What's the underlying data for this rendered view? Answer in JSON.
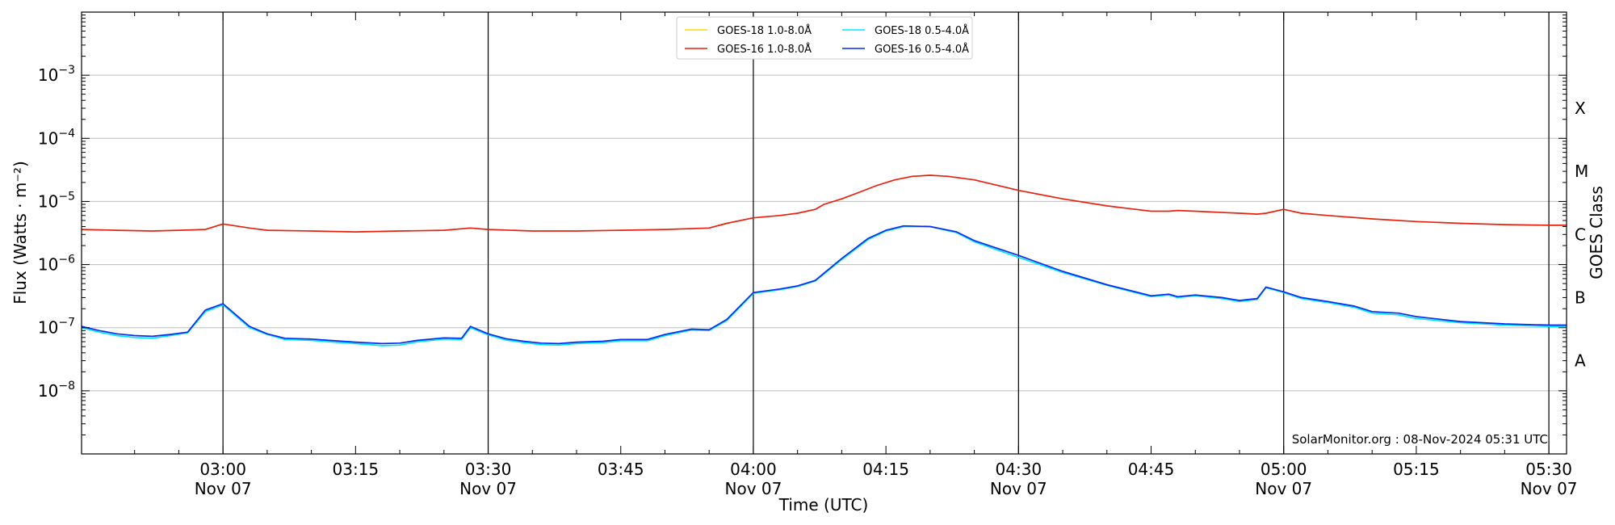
{
  "chart_data": {
    "type": "line",
    "xlabel": "Time (UTC)",
    "ylabel": "Flux (Watts · m⁻²)",
    "ylabel_right": "GOES Class",
    "y_scale": "log",
    "ylim": [
      1e-09,
      0.01
    ],
    "xlim": [
      "02:44",
      "05:32"
    ],
    "y_ticks": [
      {
        "value": 1e-08,
        "base": "10",
        "exp": "−8"
      },
      {
        "value": 1e-07,
        "base": "10",
        "exp": "−7"
      },
      {
        "value": 1e-06,
        "base": "10",
        "exp": "−6"
      },
      {
        "value": 1e-05,
        "base": "10",
        "exp": "−5"
      },
      {
        "value": 0.0001,
        "base": "10",
        "exp": "−4"
      },
      {
        "value": 0.001,
        "base": "10",
        "exp": "−3"
      }
    ],
    "x_ticks": [
      {
        "time": "03:00",
        "label": "03:00",
        "date": "Nov 07"
      },
      {
        "time": "03:15",
        "label": "03:15",
        "date": ""
      },
      {
        "time": "03:30",
        "label": "03:30",
        "date": "Nov 07"
      },
      {
        "time": "03:45",
        "label": "03:45",
        "date": ""
      },
      {
        "time": "04:00",
        "label": "04:00",
        "date": "Nov 07"
      },
      {
        "time": "04:15",
        "label": "04:15",
        "date": ""
      },
      {
        "time": "04:30",
        "label": "04:30",
        "date": "Nov 07"
      },
      {
        "time": "04:45",
        "label": "04:45",
        "date": ""
      },
      {
        "time": "05:00",
        "label": "05:00",
        "date": "Nov 07"
      },
      {
        "time": "05:15",
        "label": "05:15",
        "date": ""
      },
      {
        "time": "05:30",
        "label": "05:30",
        "date": "Nov 07"
      }
    ],
    "vertical_lines": [
      "03:00",
      "03:30",
      "04:00",
      "04:30",
      "05:00",
      "05:30"
    ],
    "goes_classes": [
      {
        "label": "A",
        "at": 3e-08
      },
      {
        "label": "B",
        "at": 3e-07
      },
      {
        "label": "C",
        "at": 3e-06
      },
      {
        "label": "M",
        "at": 3e-05
      },
      {
        "label": "X",
        "at": 0.0003
      }
    ],
    "legend": {
      "placement": "top-center",
      "columns": 2
    },
    "grid": "horizontal at decades",
    "series": [
      {
        "name": "GOES-18 1.0-8.0Å",
        "color": "#ffd700",
        "x": [],
        "values": []
      },
      {
        "name": "GOES-18 0.5-4.0Å",
        "color": "#00e5ff",
        "x": [
          "02:44",
          "02:46",
          "02:48",
          "02:50",
          "02:52",
          "02:54",
          "02:56",
          "02:58",
          "03:00",
          "03:03",
          "03:05",
          "03:07",
          "03:10",
          "03:12",
          "03:15",
          "03:18",
          "03:20",
          "03:22",
          "03:25",
          "03:27",
          "03:28",
          "03:30",
          "03:32",
          "03:34",
          "03:36",
          "03:38",
          "03:40",
          "03:43",
          "03:45",
          "03:48",
          "03:50",
          "03:53",
          "03:55",
          "03:57",
          "04:00",
          "04:03",
          "04:05",
          "04:07",
          "04:10",
          "04:13",
          "04:15",
          "04:17",
          "04:20",
          "04:23",
          "04:25",
          "04:30",
          "04:35",
          "04:40",
          "04:45",
          "04:47",
          "04:48",
          "04:50",
          "04:53",
          "04:55",
          "04:57",
          "04:58",
          "05:00",
          "05:02",
          "05:05",
          "05:08",
          "05:10",
          "05:13",
          "05:15",
          "05:20",
          "05:25",
          "05:30",
          "05:32"
        ],
        "values": [
          1e-07,
          8.5e-08,
          7.5e-08,
          7e-08,
          6.8e-08,
          7.5e-08,
          8.3e-08,
          1.8e-07,
          2.3e-07,
          1e-07,
          7.8e-08,
          6.5e-08,
          6.3e-08,
          6e-08,
          5.6e-08,
          5.2e-08,
          5.3e-08,
          6e-08,
          6.6e-08,
          6.5e-08,
          1e-07,
          7.7e-08,
          6.4e-08,
          5.8e-08,
          5.4e-08,
          5.3e-08,
          5.6e-08,
          5.8e-08,
          6.2e-08,
          6.2e-08,
          7.5e-08,
          9.2e-08,
          9e-08,
          1.3e-07,
          3.5e-07,
          4e-07,
          4.5e-07,
          5.5e-07,
          1.2e-06,
          2.5e-06,
          3.4e-06,
          4e-06,
          4e-06,
          3.2e-06,
          2.3e-06,
          1.3e-06,
          7.5e-07,
          4.7e-07,
          3.1e-07,
          3.3e-07,
          3e-07,
          3.2e-07,
          2.9e-07,
          2.6e-07,
          2.8e-07,
          4.3e-07,
          3.6e-07,
          2.9e-07,
          2.5e-07,
          2.1e-07,
          1.7e-07,
          1.6e-07,
          1.4e-07,
          1.2e-07,
          1.1e-07,
          1.05e-07,
          1.05e-07
        ]
      },
      {
        "name": "GOES-16 1.0-8.0Å",
        "color": "#e8200c",
        "x": [
          "02:44",
          "02:48",
          "02:52",
          "02:55",
          "02:58",
          "03:00",
          "03:03",
          "03:05",
          "03:10",
          "03:15",
          "03:20",
          "03:25",
          "03:28",
          "03:30",
          "03:35",
          "03:40",
          "03:45",
          "03:50",
          "03:55",
          "03:57",
          "04:00",
          "04:03",
          "04:05",
          "04:07",
          "04:08",
          "04:10",
          "04:12",
          "04:14",
          "04:16",
          "04:18",
          "04:20",
          "04:22",
          "04:25",
          "04:30",
          "04:35",
          "04:40",
          "04:45",
          "04:47",
          "04:48",
          "04:50",
          "04:55",
          "04:57",
          "04:58",
          "05:00",
          "05:02",
          "05:05",
          "05:10",
          "05:15",
          "05:20",
          "05:25",
          "05:30",
          "05:32"
        ],
        "values": [
          3.6e-06,
          3.5e-06,
          3.4e-06,
          3.5e-06,
          3.6e-06,
          4.4e-06,
          3.8e-06,
          3.5e-06,
          3.4e-06,
          3.3e-06,
          3.4e-06,
          3.5e-06,
          3.8e-06,
          3.6e-06,
          3.4e-06,
          3.4e-06,
          3.5e-06,
          3.6e-06,
          3.8e-06,
          4.5e-06,
          5.5e-06,
          6e-06,
          6.5e-06,
          7.5e-06,
          9e-06,
          1.1e-05,
          1.4e-05,
          1.8e-05,
          2.2e-05,
          2.5e-05,
          2.6e-05,
          2.5e-05,
          2.2e-05,
          1.5e-05,
          1.1e-05,
          8.5e-06,
          7e-06,
          7e-06,
          7.2e-06,
          7e-06,
          6.5e-06,
          6.3e-06,
          6.5e-06,
          7.5e-06,
          6.5e-06,
          6e-06,
          5.3e-06,
          4.8e-06,
          4.5e-06,
          4.3e-06,
          4.2e-06,
          4.2e-06
        ]
      },
      {
        "name": "GOES-16 0.5-4.0Å",
        "color": "#0a2bf0",
        "x": [
          "02:44",
          "02:46",
          "02:48",
          "02:50",
          "02:52",
          "02:54",
          "02:56",
          "02:58",
          "03:00",
          "03:03",
          "03:05",
          "03:07",
          "03:10",
          "03:12",
          "03:15",
          "03:18",
          "03:20",
          "03:22",
          "03:25",
          "03:27",
          "03:28",
          "03:30",
          "03:32",
          "03:34",
          "03:36",
          "03:38",
          "03:40",
          "03:43",
          "03:45",
          "03:48",
          "03:50",
          "03:53",
          "03:55",
          "03:57",
          "04:00",
          "04:03",
          "04:05",
          "04:07",
          "04:10",
          "04:13",
          "04:15",
          "04:17",
          "04:20",
          "04:23",
          "04:25",
          "04:30",
          "04:35",
          "04:40",
          "04:45",
          "04:47",
          "04:48",
          "04:50",
          "04:53",
          "04:55",
          "04:57",
          "04:58",
          "05:00",
          "05:02",
          "05:05",
          "05:08",
          "05:10",
          "05:13",
          "05:15",
          "05:20",
          "05:25",
          "05:30",
          "05:32"
        ],
        "values": [
          1.05e-07,
          9e-08,
          8e-08,
          7.5e-08,
          7.3e-08,
          7.8e-08,
          8.5e-08,
          1.9e-07,
          2.4e-07,
          1.05e-07,
          8e-08,
          6.8e-08,
          6.6e-08,
          6.3e-08,
          5.9e-08,
          5.6e-08,
          5.7e-08,
          6.3e-08,
          6.9e-08,
          6.8e-08,
          1.05e-07,
          8e-08,
          6.7e-08,
          6.1e-08,
          5.7e-08,
          5.6e-08,
          5.9e-08,
          6.1e-08,
          6.5e-08,
          6.5e-08,
          7.8e-08,
          9.5e-08,
          9.3e-08,
          1.35e-07,
          3.6e-07,
          4.1e-07,
          4.6e-07,
          5.6e-07,
          1.25e-06,
          2.6e-06,
          3.5e-06,
          4.1e-06,
          4e-06,
          3.3e-06,
          2.4e-06,
          1.4e-06,
          7.8e-07,
          4.8e-07,
          3.2e-07,
          3.4e-07,
          3.1e-07,
          3.3e-07,
          3e-07,
          2.7e-07,
          2.9e-07,
          4.4e-07,
          3.7e-07,
          3e-07,
          2.6e-07,
          2.2e-07,
          1.8e-07,
          1.7e-07,
          1.5e-07,
          1.25e-07,
          1.15e-07,
          1.1e-07,
          1.1e-07
        ]
      }
    ],
    "annotation": "SolarMonitor.org : 08-Nov-2024 05:31 UTC"
  }
}
